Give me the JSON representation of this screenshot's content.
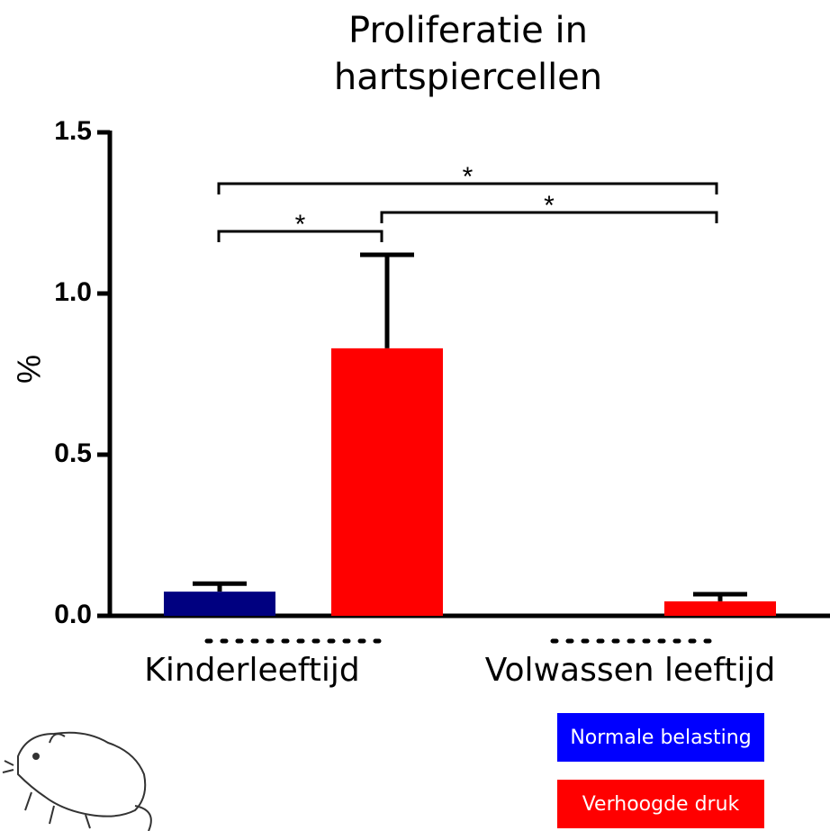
{
  "chart_data": {
    "type": "bar",
    "title": "Proliferatie in hartspiercellen",
    "ylabel": "%",
    "categories": [
      "Kinderleeftijd",
      "Volwassen leeftijd"
    ],
    "series": [
      {
        "name": "Normale belasting",
        "color": "#0000ff",
        "bar_color": "#000080",
        "values": [
          0.075,
          0
        ],
        "errors": [
          0.025,
          0
        ]
      },
      {
        "name": "Verhoogde druk",
        "color": "#ff0000",
        "bar_color": "#ff0000",
        "values": [
          0.83,
          0.045
        ],
        "errors": [
          0.29,
          0.022
        ]
      }
    ],
    "ylim": [
      0,
      1.5
    ],
    "yticks": [
      {
        "value": 0,
        "label": "0.0"
      },
      {
        "value": 0.5,
        "label": "0.5"
      },
      {
        "value": 1,
        "label": "1.0"
      },
      {
        "value": 1.5,
        "label": "1.5"
      }
    ],
    "annotations": [
      "*",
      "*",
      "*"
    ]
  }
}
